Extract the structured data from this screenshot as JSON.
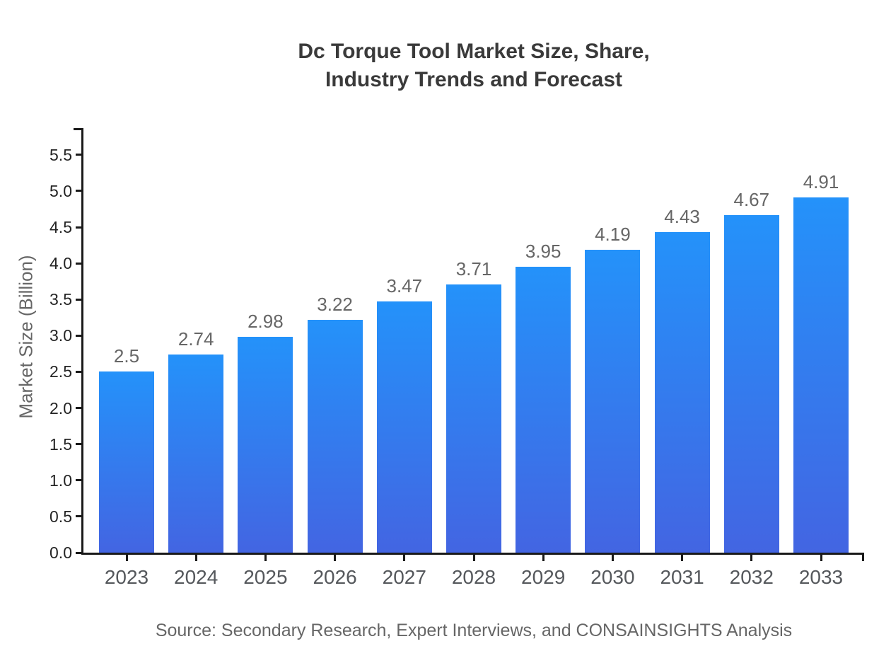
{
  "title": {
    "line1": "Dc Torque Tool Market Size, Share,",
    "line2": "Industry Trends and Forecast"
  },
  "source": "Source: Secondary Research, Expert Interviews, and CONSAINSIGHTS Analysis",
  "colors": {
    "bar_gradient_top": "#2492fa",
    "bar_gradient_bottom": "#4365e2",
    "axis_line": "#1a1a1a",
    "y_tick_label": "#242424",
    "x_tick_label": "#55585c",
    "value_label": "#666666",
    "title_text": "#3a3a3a",
    "background": "#ffffff"
  },
  "chart_data": {
    "type": "bar",
    "title": "Dc Torque Tool Market Size, Share, Industry Trends and Forecast",
    "xlabel": "",
    "ylabel": "Market Size (Billion)",
    "categories": [
      "2023",
      "2024",
      "2025",
      "2026",
      "2027",
      "2028",
      "2029",
      "2030",
      "2031",
      "2032",
      "2033"
    ],
    "values": [
      2.5,
      2.74,
      2.98,
      3.22,
      3.47,
      3.71,
      3.95,
      4.19,
      4.43,
      4.67,
      4.91
    ],
    "value_labels": [
      "2.5",
      "2.74",
      "2.98",
      "3.22",
      "3.47",
      "3.71",
      "3.95",
      "4.19",
      "4.43",
      "4.67",
      "4.91"
    ],
    "ylim": [
      0,
      5.87
    ],
    "yticks": [
      {
        "value": 0.0,
        "label": "0.0"
      },
      {
        "value": 0.5,
        "label": "0.5"
      },
      {
        "value": 1.0,
        "label": "1.0"
      },
      {
        "value": 1.5,
        "label": "1.5"
      },
      {
        "value": 2.0,
        "label": "2.0"
      },
      {
        "value": 2.5,
        "label": "2.5"
      },
      {
        "value": 3.0,
        "label": "3.0"
      },
      {
        "value": 3.5,
        "label": "3.5"
      },
      {
        "value": 4.0,
        "label": "4.0"
      },
      {
        "value": 4.5,
        "label": "4.5"
      },
      {
        "value": 5.0,
        "label": "5.0"
      },
      {
        "value": 5.5,
        "label": "5.5"
      }
    ],
    "grid": false,
    "legend": "none"
  }
}
